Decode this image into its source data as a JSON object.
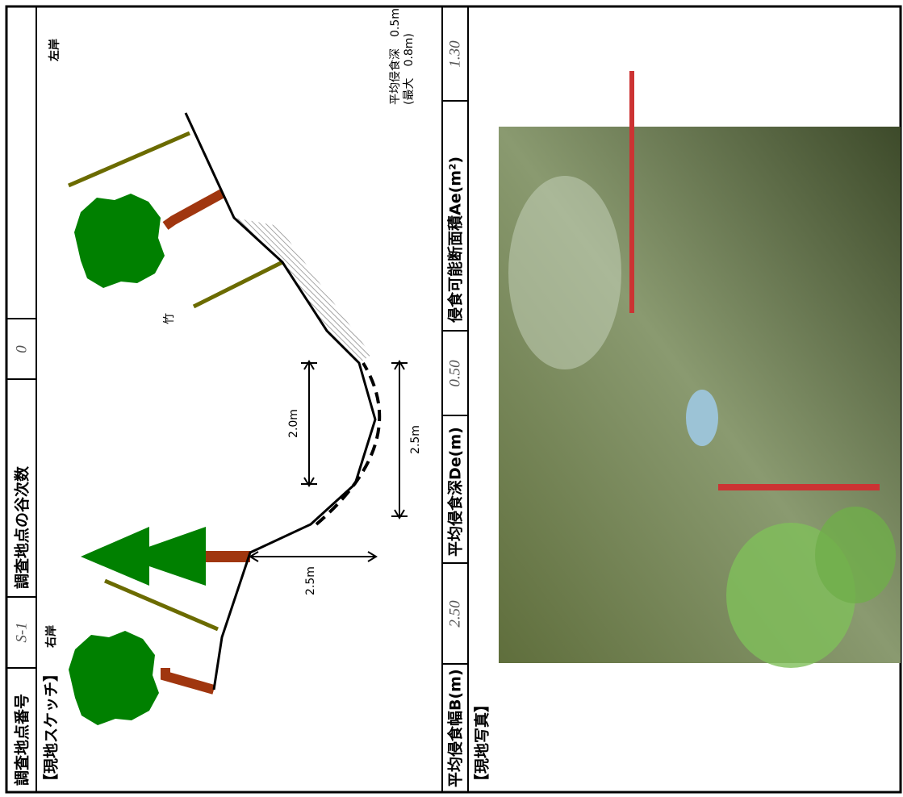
{
  "header": {
    "site_no_label": "調査地点番号",
    "site_no": "S-1",
    "order_label": "調査地点の谷次数",
    "order": "0"
  },
  "sketch": {
    "label": "【現地スケッチ】",
    "right_bank": "右岸",
    "left_bank": "左岸",
    "bamboo": "竹",
    "dims": [
      "2.5m",
      "2.0m",
      "2.5m"
    ],
    "note_depth": "平均侵食深　0.5m",
    "note_max": "(最大　0.8m)"
  },
  "metrics": {
    "width_label": "平均侵食幅B(m)",
    "width": "2.50",
    "depth_label": "平均侵食深De(m)",
    "depth": "0.50",
    "area_label": "侵食可能断面積Ae(m²)",
    "area": "1.30"
  },
  "photo": {
    "label": "【現地写真】"
  }
}
